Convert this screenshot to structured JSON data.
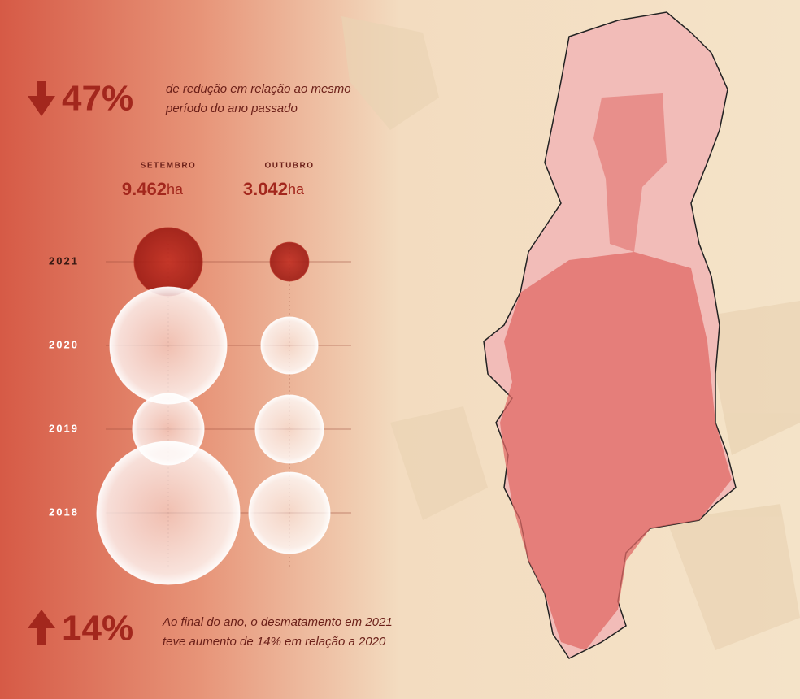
{
  "chart_data": {
    "type": "bubble",
    "headline": {
      "figure": "47%",
      "text_lines": [
        "de redução em relação ao mesmo",
        "período do ano passado"
      ]
    },
    "footer": {
      "figure": "14%",
      "text_lines": [
        "Ao final do ano, o desmatamento em 2021",
        "teve aumento de 14% em relação a 2020"
      ]
    },
    "unit": "ha",
    "categories": [
      "2021",
      "2020",
      "2019",
      "2018"
    ],
    "series": [
      {
        "name": "SETEMBRO",
        "color": "#b3261c",
        "values": [
          9462,
          27800,
          10400,
          41500
        ],
        "value_labels": [
          "9.462",
          null,
          null,
          null
        ]
      },
      {
        "name": "OUTUBRO",
        "color": "#b3261c",
        "values": [
          3042,
          6570,
          9460,
          13400
        ],
        "value_labels": [
          "3.042",
          null,
          null,
          null
        ]
      }
    ]
  }
}
